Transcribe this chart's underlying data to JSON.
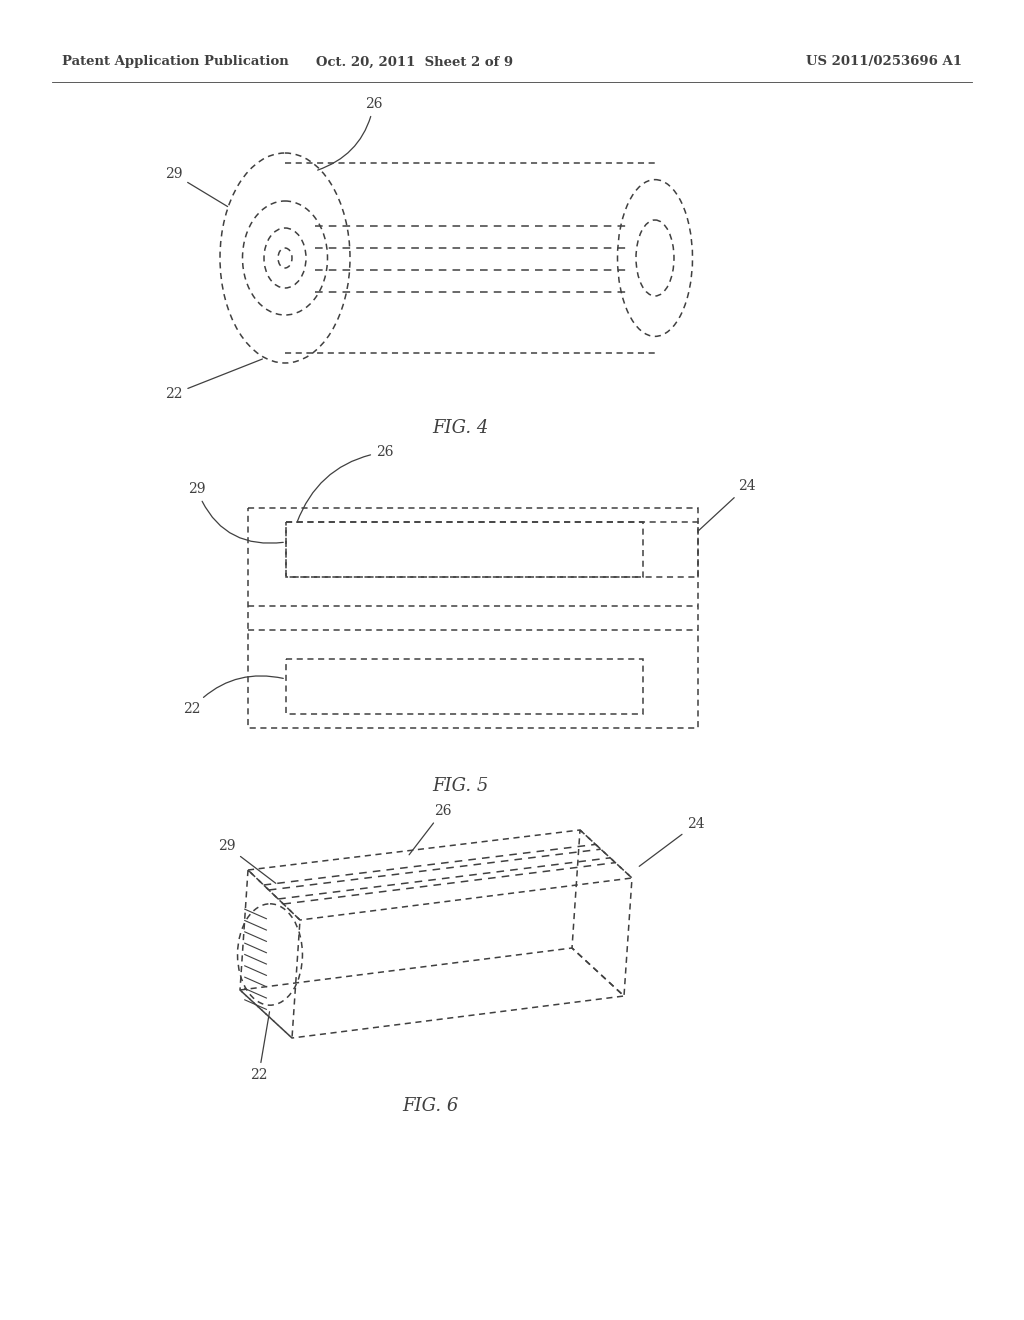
{
  "bg_color": "#ffffff",
  "line_color": "#404040",
  "header_left": "Patent Application Publication",
  "header_mid": "Oct. 20, 2011  Sheet 2 of 9",
  "header_right": "US 2011/0253696 A1",
  "fig4_label": "FIG. 4",
  "fig5_label": "FIG. 5",
  "fig6_label": "FIG. 6"
}
